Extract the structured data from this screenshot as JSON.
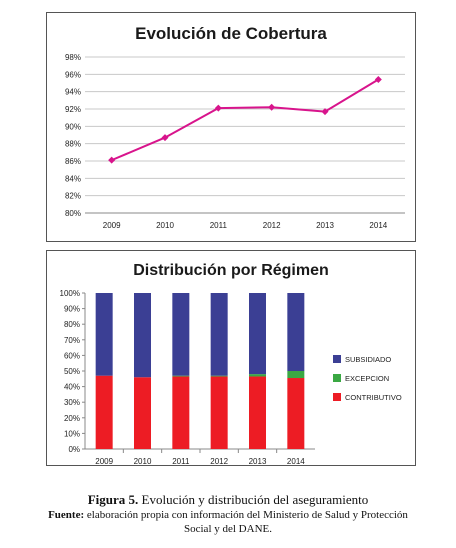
{
  "chart_data": [
    {
      "type": "line",
      "title": "Evolución de Cobertura",
      "categories": [
        "2009",
        "2010",
        "2011",
        "2012",
        "2013",
        "2014"
      ],
      "series": [
        {
          "values": [
            86.1,
            88.7,
            92.1,
            92.2,
            91.7,
            95.4
          ]
        }
      ],
      "ylim": [
        80,
        98
      ],
      "yticks": [
        "80%",
        "82%",
        "84%",
        "86%",
        "88%",
        "90%",
        "92%",
        "94%",
        "96%",
        "98%"
      ],
      "grid": true,
      "color": "#d8148c"
    },
    {
      "type": "bar",
      "stacked": true,
      "title": "Distribución por Régimen",
      "categories": [
        "2009",
        "2010",
        "2011",
        "2012",
        "2013",
        "2014"
      ],
      "series": [
        {
          "name": "CONTRIBUTIVO",
          "values": [
            47,
            46,
            46.5,
            46.5,
            46.5,
            45.5
          ],
          "color": "#ed1c24"
        },
        {
          "name": "EXCEPCION",
          "values": [
            0,
            0,
            0.5,
            0.5,
            1.5,
            4.5
          ],
          "color": "#3aa843"
        },
        {
          "name": "SUBSIDIADO",
          "values": [
            53,
            54,
            53,
            53,
            52,
            50
          ],
          "color": "#3b3f94"
        }
      ],
      "legend_order": [
        "SUBSIDIADO",
        "EXCEPCION",
        "CONTRIBUTIVO"
      ],
      "ylim": [
        0,
        100
      ],
      "yticks": [
        "0%",
        "10%",
        "20%",
        "30%",
        "40%",
        "50%",
        "60%",
        "70%",
        "80%",
        "90%",
        "100%"
      ],
      "legend": "right"
    }
  ],
  "caption": {
    "figure_label": "Figura 5.",
    "figure_text": " Evolución y distribución del aseguramiento",
    "source_label": "Fuente:",
    "source_text": " elaboración propia con información del Ministerio de Salud y Protección Social y del DANE."
  }
}
